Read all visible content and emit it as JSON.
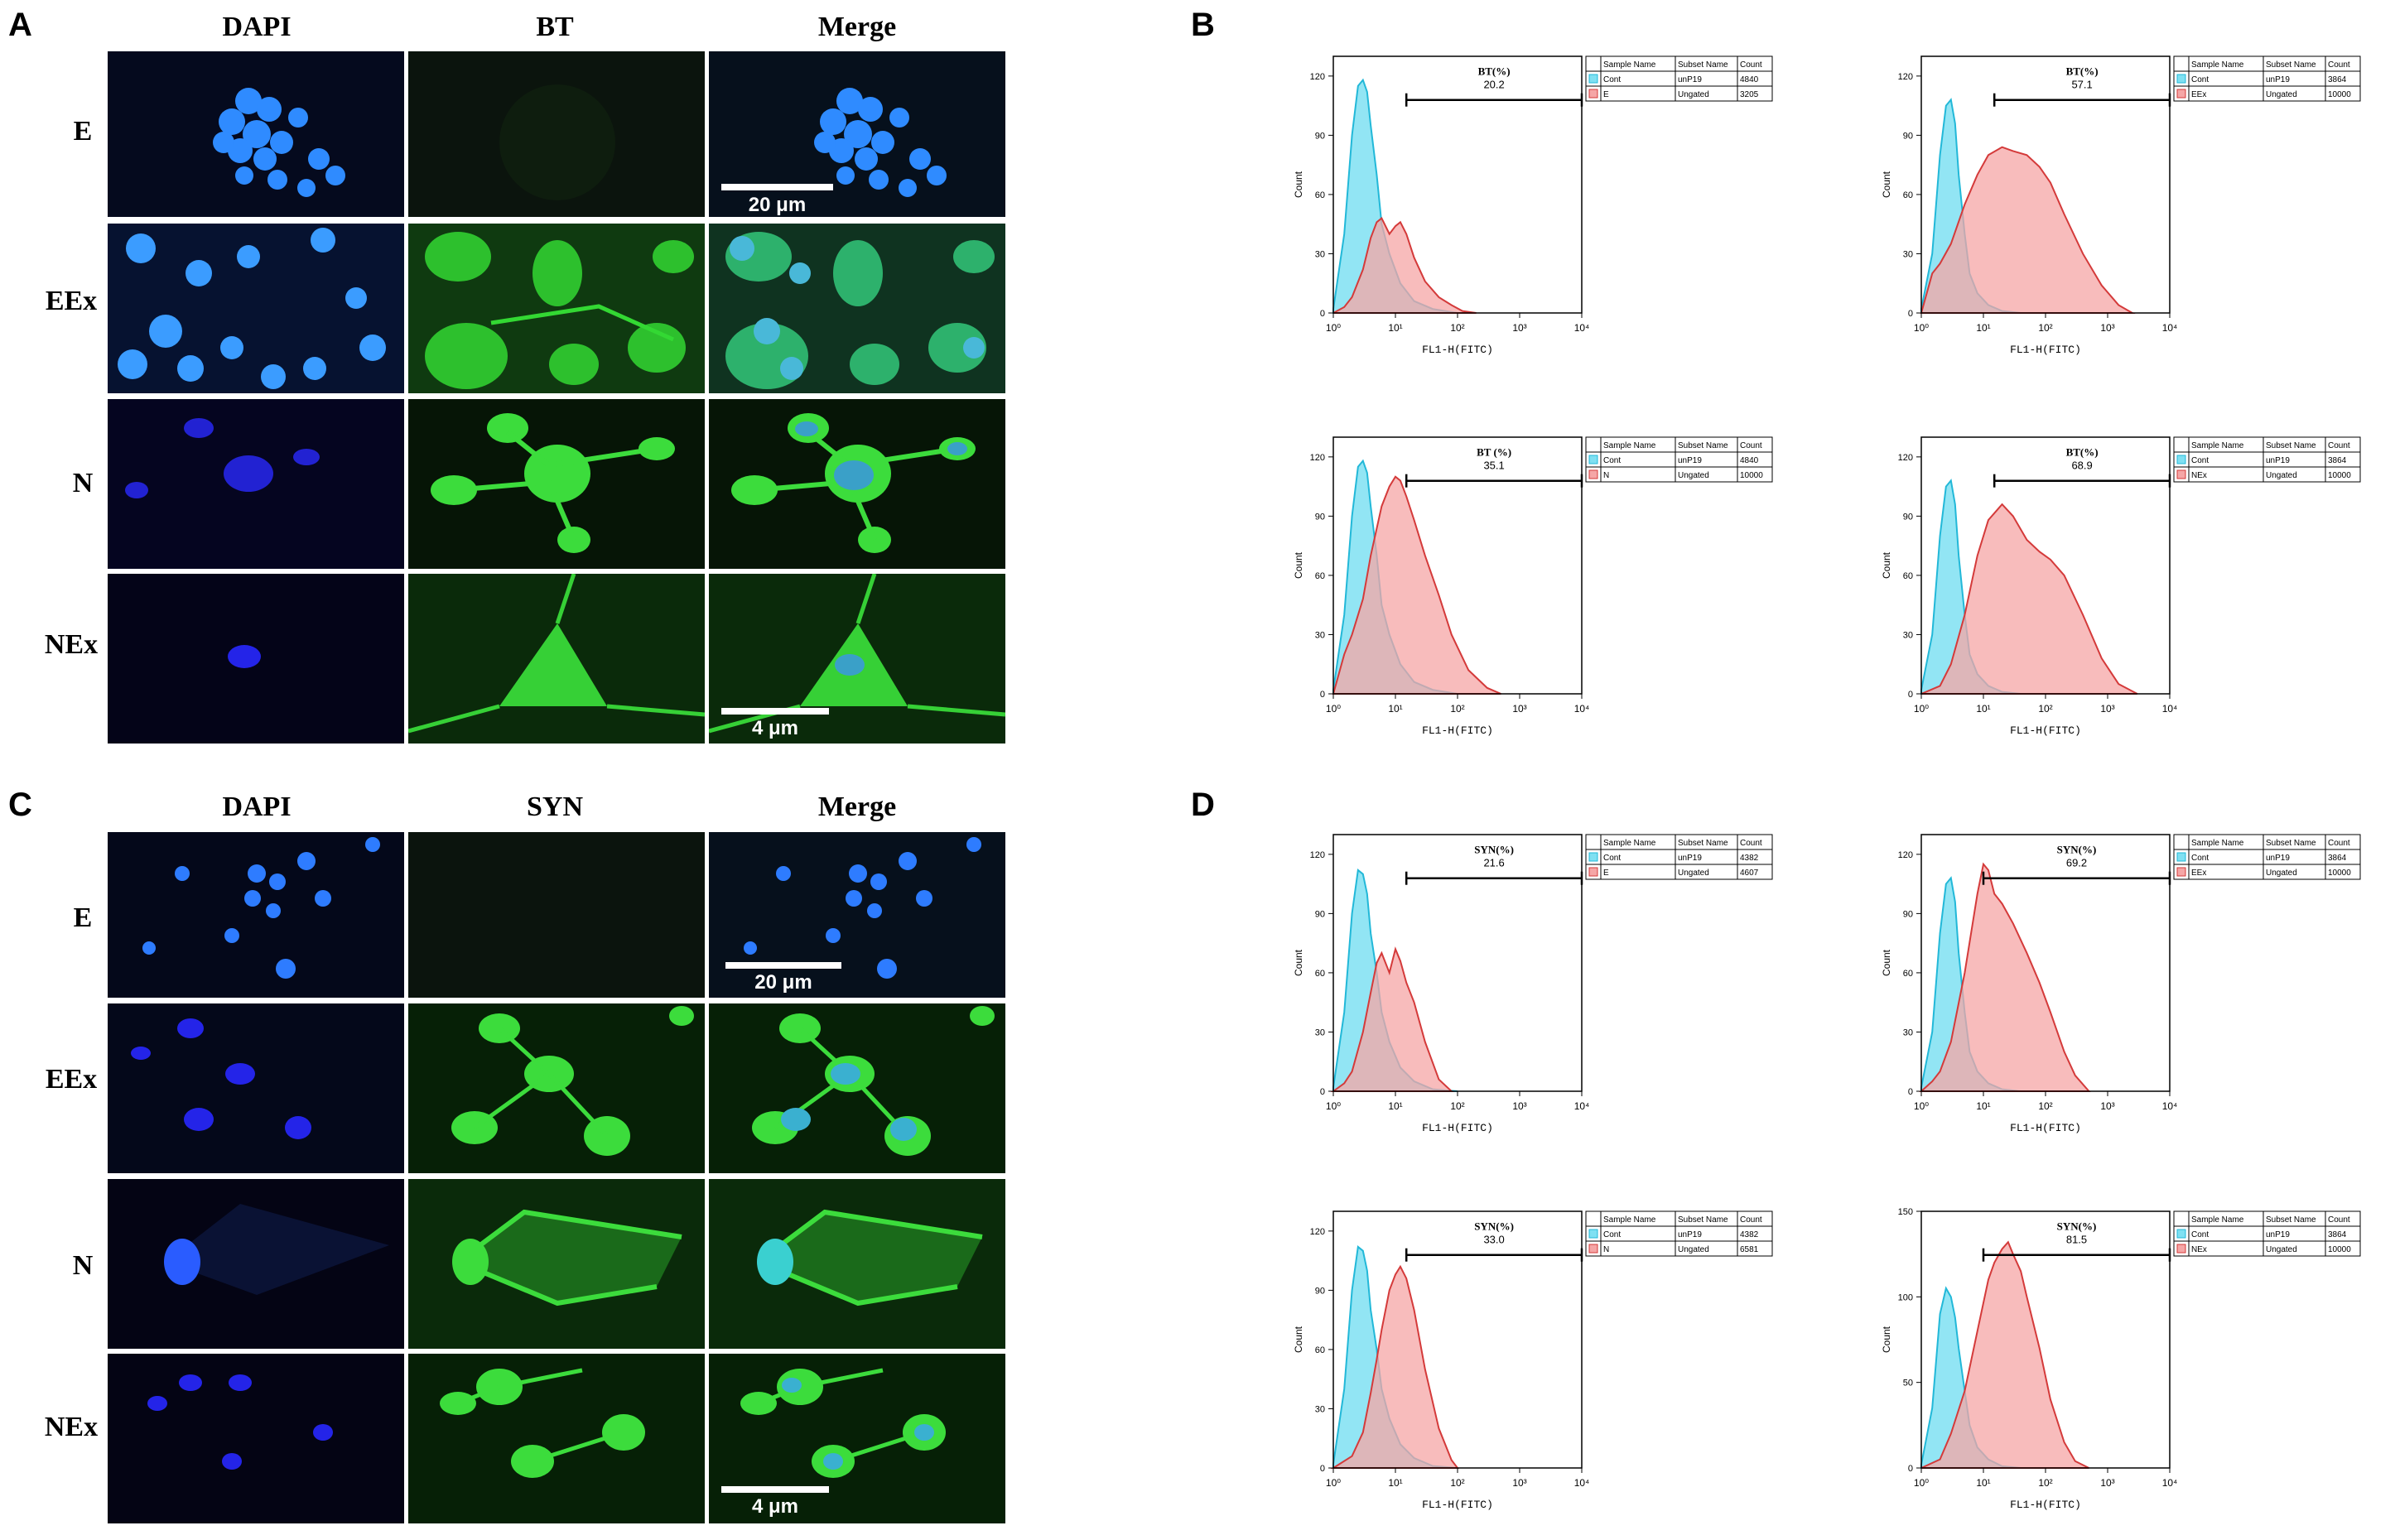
{
  "figure": {
    "panels": {
      "A": "A",
      "B": "B",
      "C": "C",
      "D": "D"
    },
    "microscopy": [
      {
        "panel": "A",
        "columns": [
          "DAPI",
          "BT",
          "Merge"
        ],
        "rows": [
          "E",
          "EEx",
          "N",
          "NEx"
        ],
        "scalebars": [
          {
            "row": 0,
            "label": "20 μm"
          },
          {
            "row": 3,
            "label": "4 μm"
          }
        ]
      },
      {
        "panel": "C",
        "columns": [
          "DAPI",
          "SYN",
          "Merge"
        ],
        "rows": [
          "E",
          "EEx",
          "N",
          "NEx"
        ],
        "scalebars": [
          {
            "row": 0,
            "label": "20 μm"
          },
          {
            "row": 3,
            "label": "4 μm"
          }
        ]
      }
    ],
    "colors": {
      "dapi": "#1f6fff",
      "bt": "#2ed62e",
      "control_fill": "#7fe0f2",
      "control_line": "#22b8d8",
      "sample_fill": "#f5a6a6",
      "sample_line": "#d43a3a",
      "overlap_fill": "#8fa5b5"
    }
  },
  "chart_data": [
    {
      "type": "area",
      "panel": "B",
      "xlabel": "FL1-H(FITC)",
      "ylabel": "Count",
      "x_scale": "log",
      "xlim": [
        1,
        10000
      ],
      "xticks": [
        "10⁰",
        "10¹",
        "10²",
        "10³",
        "10⁴"
      ],
      "ylim": [
        0,
        130
      ],
      "yticks": [
        "0",
        "30",
        "60",
        "90",
        "120"
      ],
      "gate": {
        "label": "BT(%)",
        "value": "20.2",
        "x_start": 15,
        "x_end": 10000
      },
      "legend": {
        "headers": [
          "Sample Name",
          "Subset Name",
          "Count"
        ],
        "rows": [
          [
            "Cont",
            "unP19",
            "4840"
          ],
          [
            "E",
            "Ungated",
            "3205"
          ]
        ]
      },
      "series": [
        {
          "name": "Cont",
          "x": [
            1,
            1.5,
            2,
            2.5,
            3,
            3.5,
            4,
            5,
            6,
            8,
            12,
            20,
            40,
            100
          ],
          "values": [
            2,
            40,
            90,
            115,
            118,
            112,
            95,
            70,
            45,
            30,
            15,
            6,
            2,
            0
          ]
        },
        {
          "name": "E",
          "x": [
            1,
            1.5,
            2,
            3,
            4,
            5,
            6,
            8,
            10,
            12,
            15,
            20,
            30,
            50,
            80,
            120,
            200
          ],
          "values": [
            0,
            3,
            8,
            22,
            38,
            46,
            48,
            40,
            44,
            46,
            40,
            28,
            16,
            8,
            4,
            1,
            0
          ]
        }
      ]
    },
    {
      "type": "area",
      "panel": "B",
      "xlabel": "FL1-H(FITC)",
      "ylabel": "Count",
      "x_scale": "log",
      "xlim": [
        1,
        10000
      ],
      "xticks": [
        "10⁰",
        "10¹",
        "10²",
        "10³",
        "10⁴"
      ],
      "ylim": [
        0,
        130
      ],
      "yticks": [
        "0",
        "30",
        "60",
        "90",
        "120"
      ],
      "gate": {
        "label": "BT(%)",
        "value": "57.1",
        "x_start": 15,
        "x_end": 10000
      },
      "legend": {
        "headers": [
          "Sample Name",
          "Subset Name",
          "Count"
        ],
        "rows": [
          [
            "Cont",
            "unP19",
            "3864"
          ],
          [
            "EEx",
            "Ungated",
            "10000"
          ]
        ]
      },
      "series": [
        {
          "name": "Cont",
          "x": [
            1,
            1.5,
            2,
            2.5,
            3,
            3.5,
            4,
            5,
            6,
            8,
            12,
            20,
            40
          ],
          "values": [
            2,
            30,
            80,
            105,
            108,
            96,
            70,
            40,
            20,
            10,
            4,
            1,
            0
          ]
        },
        {
          "name": "EEx",
          "x": [
            1,
            1.5,
            2,
            3,
            5,
            8,
            12,
            20,
            30,
            50,
            80,
            120,
            200,
            400,
            800,
            1500,
            2500
          ],
          "values": [
            0,
            20,
            25,
            35,
            55,
            70,
            80,
            84,
            82,
            80,
            74,
            66,
            50,
            30,
            14,
            4,
            0
          ]
        }
      ]
    },
    {
      "type": "area",
      "panel": "B",
      "xlabel": "FL1-H(FITC)",
      "ylabel": "Count",
      "x_scale": "log",
      "xlim": [
        1,
        10000
      ],
      "xticks": [
        "10⁰",
        "10¹",
        "10²",
        "10³",
        "10⁴"
      ],
      "ylim": [
        0,
        130
      ],
      "yticks": [
        "0",
        "30",
        "60",
        "90",
        "120"
      ],
      "gate": {
        "label": "BT (%)",
        "value": "35.1",
        "x_start": 15,
        "x_end": 10000
      },
      "legend": {
        "headers": [
          "Sample Name",
          "Subset Name",
          "Count"
        ],
        "rows": [
          [
            "Cont",
            "unP19",
            "4840"
          ],
          [
            "N",
            "Ungated",
            "10000"
          ]
        ]
      },
      "series": [
        {
          "name": "Cont",
          "x": [
            1,
            1.5,
            2,
            2.5,
            3,
            3.5,
            4,
            5,
            6,
            8,
            12,
            20,
            40,
            100
          ],
          "values": [
            2,
            40,
            90,
            115,
            118,
            112,
            95,
            70,
            45,
            30,
            15,
            6,
            2,
            0
          ]
        },
        {
          "name": "N",
          "x": [
            1,
            1.5,
            2,
            3,
            4,
            6,
            8,
            10,
            12,
            15,
            20,
            30,
            50,
            80,
            150,
            300,
            500
          ],
          "values": [
            0,
            20,
            30,
            48,
            70,
            95,
            105,
            110,
            108,
            100,
            88,
            70,
            50,
            30,
            12,
            3,
            0
          ]
        }
      ]
    },
    {
      "type": "area",
      "panel": "B",
      "xlabel": "FL1-H(FITC)",
      "ylabel": "Count",
      "x_scale": "log",
      "xlim": [
        1,
        10000
      ],
      "xticks": [
        "10⁰",
        "10¹",
        "10²",
        "10³",
        "10⁴"
      ],
      "ylim": [
        0,
        130
      ],
      "yticks": [
        "0",
        "30",
        "60",
        "90",
        "120"
      ],
      "gate": {
        "label": "BT(%)",
        "value": "68.9",
        "x_start": 15,
        "x_end": 10000
      },
      "legend": {
        "headers": [
          "Sample Name",
          "Subset Name",
          "Count"
        ],
        "rows": [
          [
            "Cont",
            "unP19",
            "3864"
          ],
          [
            "NEx",
            "Ungated",
            "10000"
          ]
        ]
      },
      "series": [
        {
          "name": "Cont",
          "x": [
            1,
            1.5,
            2,
            2.5,
            3,
            3.5,
            4,
            5,
            6,
            8,
            12,
            20,
            40
          ],
          "values": [
            2,
            30,
            80,
            105,
            108,
            96,
            70,
            40,
            20,
            10,
            4,
            1,
            0
          ]
        },
        {
          "name": "NEx",
          "x": [
            1,
            2,
            3,
            5,
            8,
            12,
            20,
            30,
            50,
            80,
            120,
            200,
            400,
            800,
            1500,
            3000
          ],
          "values": [
            0,
            4,
            15,
            40,
            70,
            88,
            96,
            90,
            78,
            72,
            68,
            60,
            40,
            18,
            5,
            0
          ]
        }
      ]
    },
    {
      "type": "area",
      "panel": "D",
      "xlabel": "FL1-H(FITC)",
      "ylabel": "Count",
      "x_scale": "log",
      "xlim": [
        1,
        10000
      ],
      "xticks": [
        "10⁰",
        "10¹",
        "10²",
        "10³",
        "10⁴"
      ],
      "ylim": [
        0,
        130
      ],
      "yticks": [
        "0",
        "30",
        "60",
        "90",
        "120"
      ],
      "gate": {
        "label": "SYN(%)",
        "value": "21.6",
        "x_start": 15,
        "x_end": 10000
      },
      "legend": {
        "headers": [
          "Sample Name",
          "Subset Name",
          "Count"
        ],
        "rows": [
          [
            "Cont",
            "unP19",
            "4382"
          ],
          [
            "E",
            "Ungated",
            "4607"
          ]
        ]
      },
      "series": [
        {
          "name": "Cont",
          "x": [
            1,
            1.5,
            2,
            2.5,
            3,
            3.5,
            4,
            5,
            6,
            8,
            12,
            20,
            40,
            100
          ],
          "values": [
            2,
            40,
            90,
            112,
            110,
            100,
            80,
            60,
            40,
            25,
            12,
            5,
            1,
            0
          ]
        },
        {
          "name": "E",
          "x": [
            1,
            1.5,
            2,
            3,
            4,
            5,
            6,
            8,
            10,
            12,
            15,
            20,
            30,
            50,
            80
          ],
          "values": [
            0,
            4,
            10,
            30,
            50,
            65,
            70,
            60,
            72,
            66,
            55,
            45,
            25,
            6,
            0
          ]
        }
      ]
    },
    {
      "type": "area",
      "panel": "D",
      "xlabel": "FL1-H(FITC)",
      "ylabel": "Count",
      "x_scale": "log",
      "xlim": [
        1,
        10000
      ],
      "xticks": [
        "10⁰",
        "10¹",
        "10²",
        "10³",
        "10⁴"
      ],
      "ylim": [
        0,
        130
      ],
      "yticks": [
        "0",
        "30",
        "60",
        "90",
        "120"
      ],
      "gate": {
        "label": "SYN(%)",
        "value": "69.2",
        "x_start": 10,
        "x_end": 10000
      },
      "legend": {
        "headers": [
          "Sample Name",
          "Subset Name",
          "Count"
        ],
        "rows": [
          [
            "Cont",
            "unP19",
            "3864"
          ],
          [
            "EEx",
            "Ungated",
            "10000"
          ]
        ]
      },
      "series": [
        {
          "name": "Cont",
          "x": [
            1,
            1.5,
            2,
            2.5,
            3,
            3.5,
            4,
            5,
            6,
            8,
            12,
            20,
            40
          ],
          "values": [
            2,
            30,
            80,
            105,
            108,
            96,
            70,
            40,
            20,
            10,
            4,
            1,
            0
          ]
        },
        {
          "name": "EEx",
          "x": [
            1,
            1.5,
            2,
            3,
            5,
            8,
            10,
            12,
            15,
            20,
            30,
            50,
            80,
            120,
            200,
            300,
            500
          ],
          "values": [
            0,
            5,
            10,
            25,
            60,
            100,
            115,
            112,
            100,
            95,
            85,
            70,
            55,
            40,
            20,
            8,
            0
          ]
        }
      ]
    },
    {
      "type": "area",
      "panel": "D",
      "xlabel": "FL1-H(FITC)",
      "ylabel": "Count",
      "x_scale": "log",
      "xlim": [
        1,
        10000
      ],
      "xticks": [
        "10⁰",
        "10¹",
        "10²",
        "10³",
        "10⁴"
      ],
      "ylim": [
        0,
        130
      ],
      "yticks": [
        "0",
        "30",
        "60",
        "90",
        "120"
      ],
      "gate": {
        "label": "SYN(%)",
        "value": "33.0",
        "x_start": 15,
        "x_end": 10000
      },
      "legend": {
        "headers": [
          "Sample Name",
          "Subset Name",
          "Count"
        ],
        "rows": [
          [
            "Cont",
            "unP19",
            "4382"
          ],
          [
            "N",
            "Ungated",
            "6581"
          ]
        ]
      },
      "series": [
        {
          "name": "Cont",
          "x": [
            1,
            1.5,
            2,
            2.5,
            3,
            3.5,
            4,
            5,
            6,
            8,
            12,
            20,
            40,
            100
          ],
          "values": [
            2,
            40,
            90,
            112,
            110,
            100,
            80,
            60,
            40,
            25,
            12,
            5,
            1,
            0
          ]
        },
        {
          "name": "N",
          "x": [
            1,
            2,
            3,
            4,
            5,
            6,
            8,
            10,
            12,
            15,
            20,
            30,
            50,
            80,
            100
          ],
          "values": [
            0,
            6,
            18,
            38,
            55,
            70,
            90,
            98,
            102,
            96,
            80,
            50,
            20,
            4,
            0
          ]
        }
      ]
    },
    {
      "type": "area",
      "panel": "D",
      "xlabel": "FL1-H(FITC)",
      "ylabel": "Count",
      "x_scale": "log",
      "xlim": [
        1,
        10000
      ],
      "xticks": [
        "10⁰",
        "10¹",
        "10²",
        "10³",
        "10⁴"
      ],
      "ylim": [
        0,
        150
      ],
      "yticks": [
        "0",
        "50",
        "100",
        "150"
      ],
      "gate": {
        "label": "SYN(%)",
        "value": "81.5",
        "x_start": 10,
        "x_end": 10000
      },
      "legend": {
        "headers": [
          "Sample Name",
          "Subset Name",
          "Count"
        ],
        "rows": [
          [
            "Cont",
            "unP19",
            "3864"
          ],
          [
            "NEx",
            "Ungated",
            "10000"
          ]
        ]
      },
      "series": [
        {
          "name": "Cont",
          "x": [
            1,
            1.5,
            2,
            2.5,
            3,
            3.5,
            4,
            5,
            6,
            8,
            12,
            20,
            40
          ],
          "values": [
            2,
            35,
            90,
            105,
            100,
            88,
            70,
            45,
            25,
            12,
            5,
            1,
            0
          ]
        },
        {
          "name": "NEx",
          "x": [
            1,
            2,
            3,
            5,
            8,
            12,
            15,
            20,
            25,
            30,
            40,
            50,
            80,
            120,
            200,
            300,
            500
          ],
          "values": [
            0,
            5,
            20,
            45,
            80,
            110,
            120,
            128,
            132,
            125,
            115,
            100,
            70,
            40,
            15,
            4,
            0
          ]
        }
      ]
    }
  ]
}
